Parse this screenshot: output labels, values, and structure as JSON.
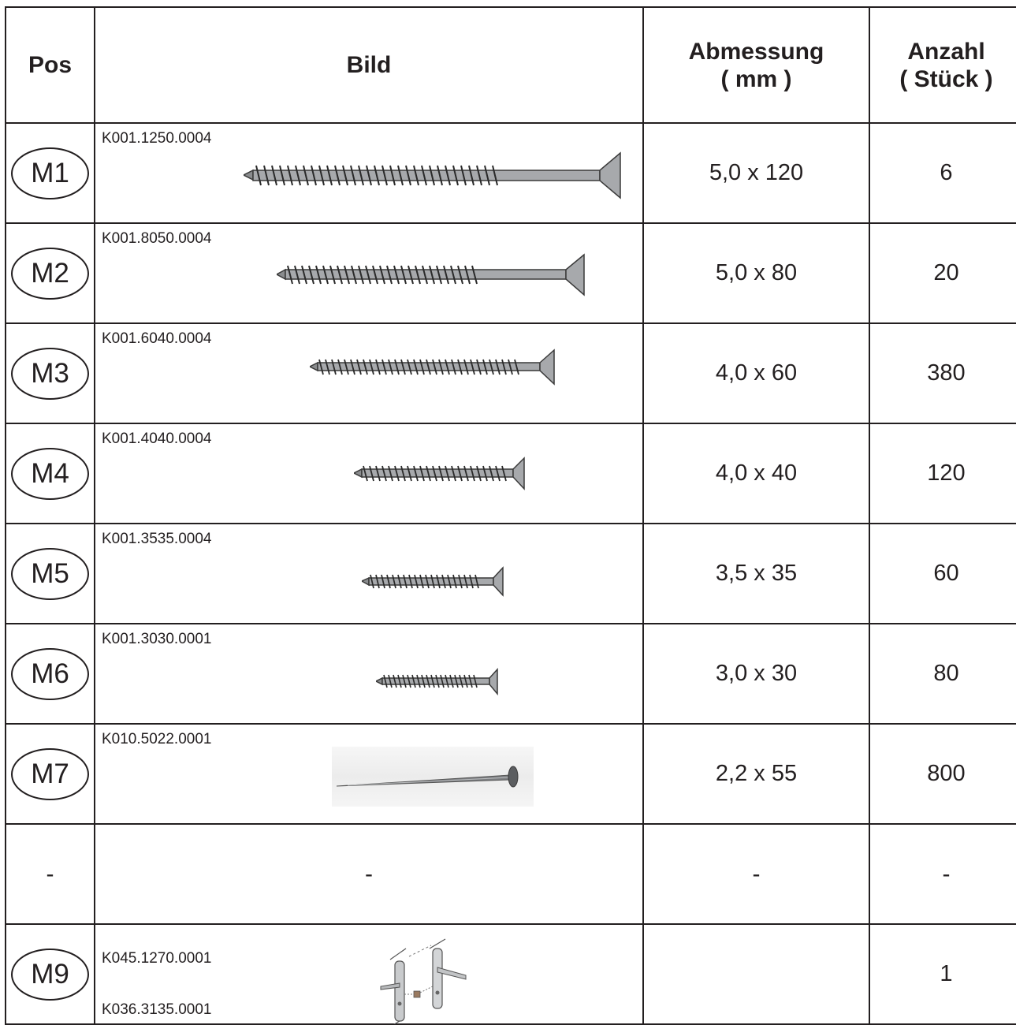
{
  "headers": {
    "pos": "Pos",
    "bild": "Bild",
    "abmessung_line1": "Abmessung",
    "abmessung_line2": "( mm )",
    "anzahl_line1": "Anzahl",
    "anzahl_line2": "( Stück )"
  },
  "rows": [
    {
      "pos": "M1",
      "article": "K001.1250.0004",
      "icon": "screw-icon",
      "dimension": "5,0 x 120",
      "count": "6"
    },
    {
      "pos": "M2",
      "article": "K001.8050.0004",
      "icon": "screw-icon",
      "dimension": "5,0 x 80",
      "count": "20"
    },
    {
      "pos": "M3",
      "article": "K001.6040.0004",
      "icon": "screw-icon",
      "dimension": "4,0 x 60",
      "count": "380"
    },
    {
      "pos": "M4",
      "article": "K001.4040.0004",
      "icon": "screw-icon",
      "dimension": "4,0 x 40",
      "count": "120"
    },
    {
      "pos": "M5",
      "article": "K001.3535.0004",
      "icon": "screw-icon",
      "dimension": "3,5 x 35",
      "count": "60"
    },
    {
      "pos": "M6",
      "article": "K001.3030.0001",
      "icon": "screw-icon",
      "dimension": "3,0 x 30",
      "count": "80"
    },
    {
      "pos": "M7",
      "article": "K010.5022.0001",
      "icon": "nail-icon",
      "dimension": "2,2 x 55",
      "count": "800"
    },
    {
      "pos": "-",
      "bild": "-",
      "dimension": "-",
      "count": "-"
    },
    {
      "pos": "M9",
      "article": "K045.1270.0001",
      "article2": "K036.3135.0001",
      "icon": "door-handle-set-icon",
      "dimension": "",
      "count": "1"
    }
  ]
}
